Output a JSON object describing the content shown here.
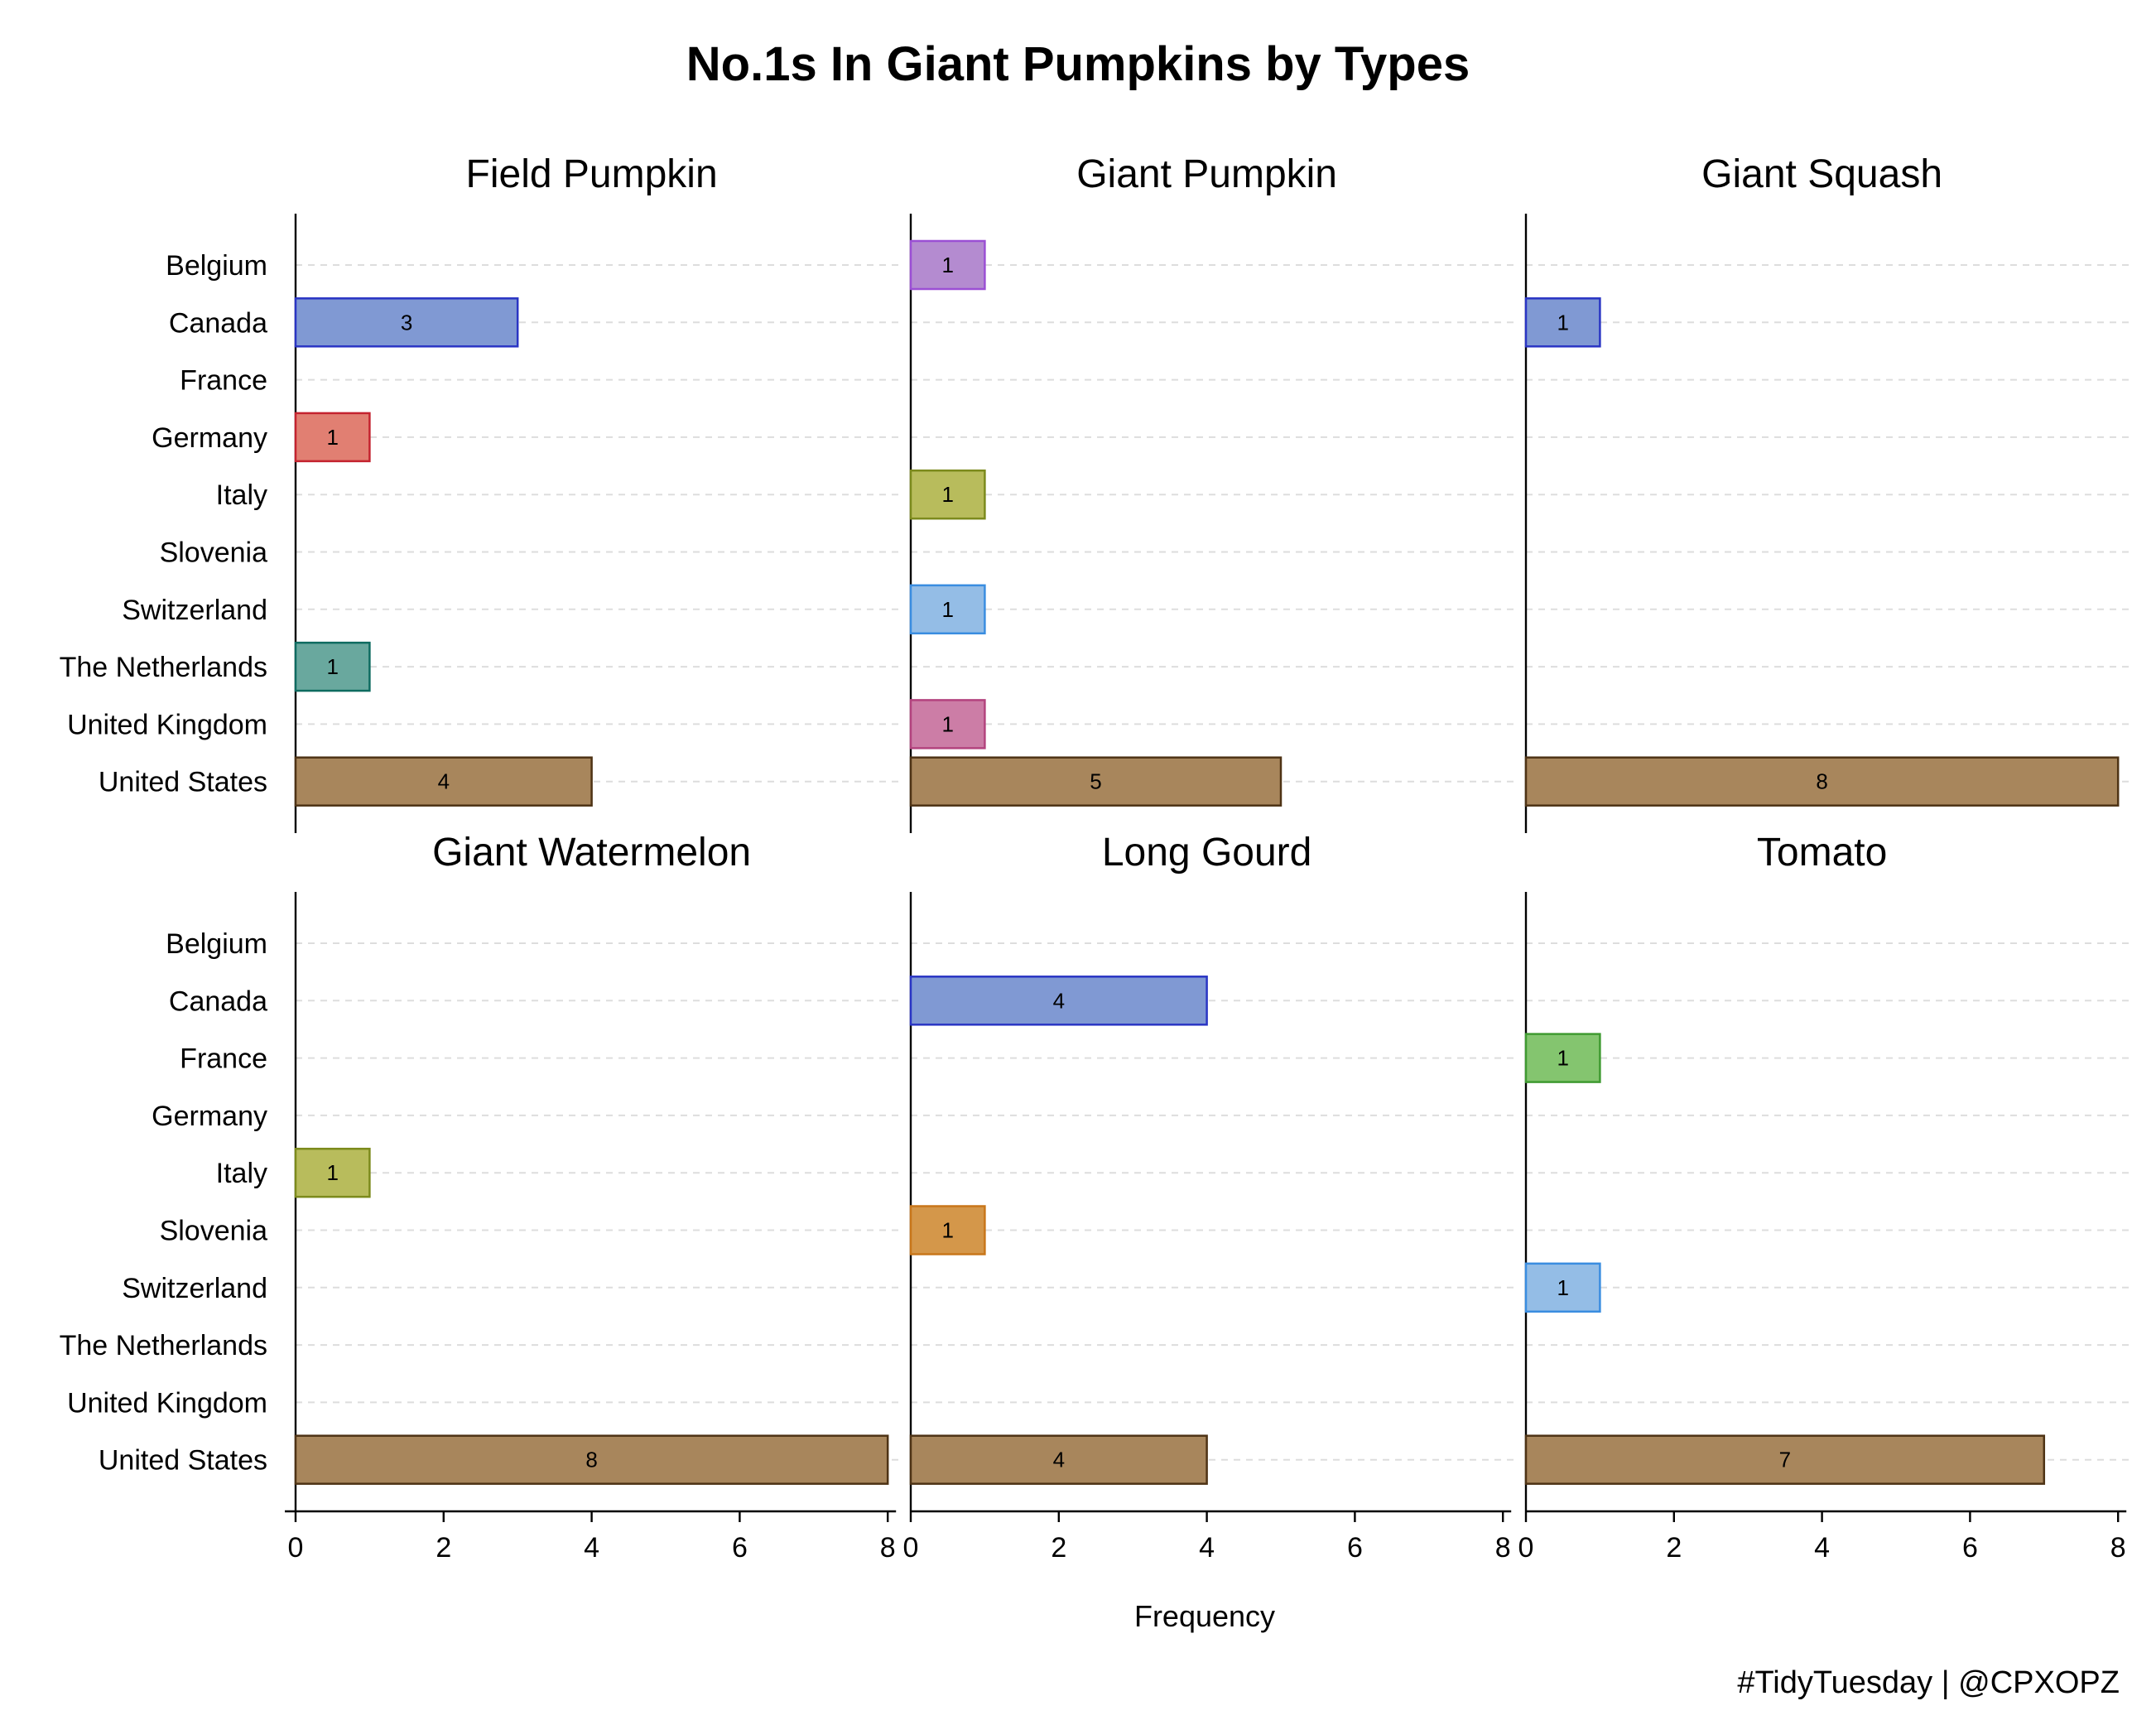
{
  "chart_data": {
    "type": "bar",
    "orientation": "horizontal",
    "title": "No.1s In Giant Pumpkins by Types",
    "xlabel": "Frequency",
    "ylabel": "",
    "caption": "#TidyTuesday | @CPXOPZ",
    "xlim": [
      0,
      8
    ],
    "x_ticks": [
      0,
      2,
      4,
      6,
      8
    ],
    "grid": "horizontal dashed",
    "categories": [
      "Belgium",
      "Canada",
      "France",
      "Germany",
      "Italy",
      "Slovenia",
      "Switzerland",
      "The Netherlands",
      "United Kingdom",
      "United States"
    ],
    "colors": {
      "Belgium": {
        "fill": "#b48bd0",
        "stroke": "#9b4fd4"
      },
      "Canada": {
        "fill": "#8099d3",
        "stroke": "#2a35c4"
      },
      "France": {
        "fill": "#84c56f",
        "stroke": "#3f9a31"
      },
      "Germany": {
        "fill": "#e17f72",
        "stroke": "#c4232f"
      },
      "Italy": {
        "fill": "#b8bc5c",
        "stroke": "#7c8a1c"
      },
      "Slovenia": {
        "fill": "#d4974a",
        "stroke": "#c8761a"
      },
      "Switzerland": {
        "fill": "#94bde6",
        "stroke": "#3a8de0"
      },
      "The Netherlands": {
        "fill": "#69a89e",
        "stroke": "#0e6b60"
      },
      "United Kingdom": {
        "fill": "#cc7da6",
        "stroke": "#b3437e"
      },
      "United States": {
        "fill": "#a8865c",
        "stroke": "#4e3315"
      }
    },
    "facets": [
      {
        "name": "Field Pumpkin",
        "values": [
          0,
          3,
          0,
          1,
          0,
          0,
          0,
          1,
          0,
          4
        ]
      },
      {
        "name": "Giant Pumpkin",
        "values": [
          1,
          0,
          0,
          0,
          1,
          0,
          1,
          0,
          1,
          5
        ]
      },
      {
        "name": "Giant Squash",
        "values": [
          0,
          1,
          0,
          0,
          0,
          0,
          0,
          0,
          0,
          8
        ]
      },
      {
        "name": "Giant Watermelon",
        "values": [
          0,
          0,
          0,
          0,
          1,
          0,
          0,
          0,
          0,
          8
        ]
      },
      {
        "name": "Long Gourd",
        "values": [
          0,
          4,
          0,
          0,
          0,
          1,
          0,
          0,
          0,
          4
        ]
      },
      {
        "name": "Tomato",
        "values": [
          0,
          0,
          1,
          0,
          0,
          0,
          1,
          0,
          0,
          7
        ]
      }
    ]
  }
}
